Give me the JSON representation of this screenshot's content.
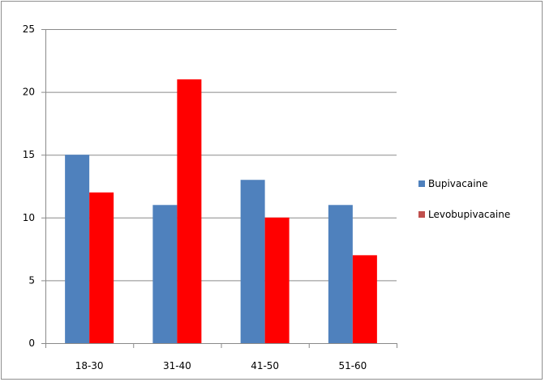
{
  "chart_data": {
    "type": "bar",
    "categories": [
      "18-30",
      "31-40",
      "41-50",
      "51-60"
    ],
    "series": [
      {
        "name": "Bupivacaine",
        "values": [
          15,
          11,
          13,
          11
        ],
        "color": "#4f81bd"
      },
      {
        "name": "Levobupivacaine",
        "values": [
          12,
          21,
          10,
          7
        ],
        "color": "#ff0000"
      }
    ],
    "ylim": [
      0,
      25
    ],
    "yticks": [
      0,
      5,
      10,
      15,
      20,
      25
    ],
    "grid": true,
    "legend_position": "right",
    "title": "",
    "xlabel": "",
    "ylabel": ""
  }
}
